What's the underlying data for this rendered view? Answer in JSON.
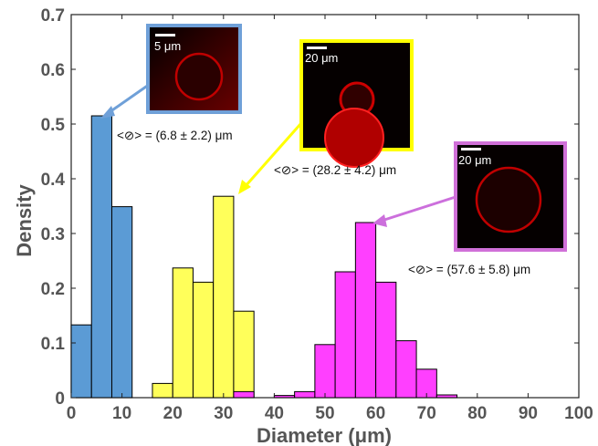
{
  "chart_data": {
    "type": "bar",
    "xlabel": "Diameter (μm)",
    "ylabel": "Density",
    "xlim": [
      0,
      100
    ],
    "ylim": [
      0,
      0.7
    ],
    "x_ticks": [
      "0",
      "10",
      "20",
      "30",
      "40",
      "50",
      "60",
      "70",
      "80",
      "90",
      "100"
    ],
    "y_ticks": [
      "0",
      "0.1",
      "0.2",
      "0.3",
      "0.4",
      "0.5",
      "0.6",
      "0.7"
    ],
    "grid": false,
    "series": [
      {
        "color": "#5b9bd5",
        "bins": [
          {
            "x0": 0,
            "x1": 4,
            "value": 0.133
          },
          {
            "x0": 4,
            "x1": 8,
            "value": 0.515
          },
          {
            "x0": 8,
            "x1": 12,
            "value": 0.349
          }
        ]
      },
      {
        "color": "#ffff5a",
        "bins": [
          {
            "x0": 16,
            "x1": 20,
            "value": 0.026
          },
          {
            "x0": 20,
            "x1": 24,
            "value": 0.237
          },
          {
            "x0": 24,
            "x1": 28,
            "value": 0.211
          },
          {
            "x0": 28,
            "x1": 32,
            "value": 0.368
          },
          {
            "x0": 32,
            "x1": 36,
            "value": 0.158
          }
        ]
      },
      {
        "color": "#ff3fff",
        "bins": [
          {
            "x0": 32,
            "x1": 36,
            "value": 0.011
          },
          {
            "x0": 40,
            "x1": 44,
            "value": 0.004
          },
          {
            "x0": 44,
            "x1": 48,
            "value": 0.011
          },
          {
            "x0": 48,
            "x1": 52,
            "value": 0.097
          },
          {
            "x0": 52,
            "x1": 56,
            "value": 0.23
          },
          {
            "x0": 56,
            "x1": 60,
            "value": 0.32
          },
          {
            "x0": 60,
            "x1": 64,
            "value": 0.211
          },
          {
            "x0": 64,
            "x1": 68,
            "value": 0.104
          },
          {
            "x0": 68,
            "x1": 72,
            "value": 0.052
          },
          {
            "x0": 72,
            "x1": 76,
            "value": 0.005
          }
        ]
      }
    ],
    "annotations": [
      {
        "text": "<⊘> = (6.8  ± 2.2) μm"
      },
      {
        "text": "<⊘> = (28.2  ± 4.2) μm"
      },
      {
        "text": "<⊘> = (57.6  ± 5.8) μm"
      }
    ],
    "insets": [
      {
        "scale_label": "5 μm",
        "border_color": "#5b9bd5"
      },
      {
        "scale_label": "20 μm",
        "border_color": "#ffff00"
      },
      {
        "scale_label": "20 μm",
        "border_color": "#d070d8"
      }
    ]
  }
}
